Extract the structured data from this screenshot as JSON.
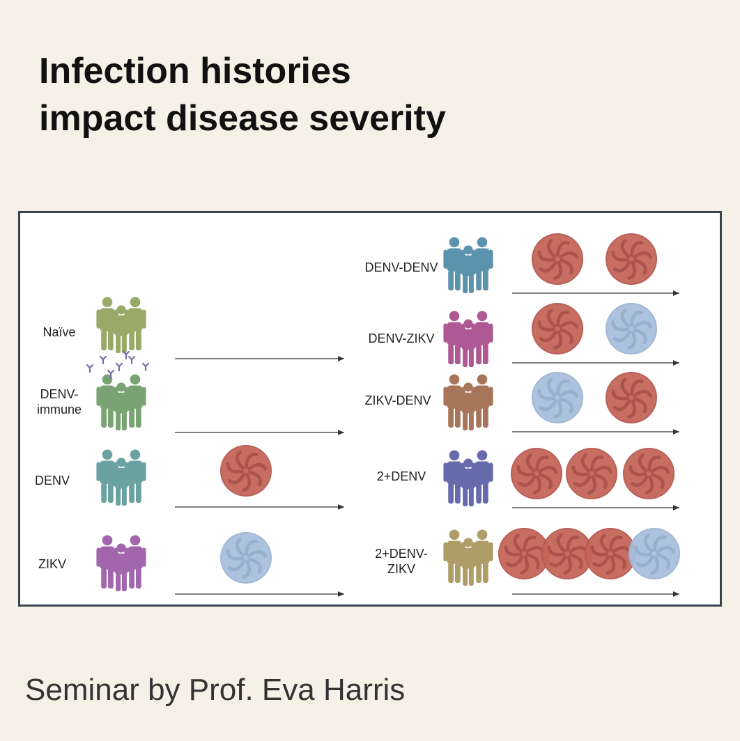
{
  "title": {
    "line1": "Infection histories",
    "line2": "impact disease severity"
  },
  "footer": "Seminar by Prof. Eva Harris",
  "colors": {
    "background": "#f5f1e6",
    "panel_border": "#3a4450",
    "denv_virus": "#c5655a",
    "zikv_virus": "#a9bfdc"
  },
  "left_groups": [
    {
      "label": "Naïve",
      "people_color": "#8fa35c",
      "antibodies": false,
      "viruses": []
    },
    {
      "label": "DENV-\nimmune",
      "people_color": "#6f9c68",
      "antibodies": true,
      "viruses": []
    },
    {
      "label": "DENV",
      "people_color": "#5e9a9a",
      "antibodies": false,
      "viruses": [
        "denv"
      ]
    },
    {
      "label": "ZIKV",
      "people_color": "#9a5aa6",
      "antibodies": false,
      "viruses": [
        "zikv"
      ]
    }
  ],
  "right_groups": [
    {
      "label": "DENV-DENV",
      "people_color": "#4f8aa6",
      "viruses": [
        "denv",
        "denv"
      ]
    },
    {
      "label": "DENV-ZIKV",
      "people_color": "#a84c8a",
      "viruses": [
        "denv",
        "zikv"
      ]
    },
    {
      "label": "ZIKV-DENV",
      "people_color": "#a06a4c",
      "viruses": [
        "zikv",
        "denv"
      ]
    },
    {
      "label": "2+DENV",
      "people_color": "#5a5fa6",
      "viruses": [
        "denv",
        "denv",
        "denv"
      ]
    },
    {
      "label": "2+DENV-\nZIKV",
      "people_color": "#a8955a",
      "viruses": [
        "denv",
        "denv",
        "denv",
        "zikv"
      ]
    }
  ]
}
